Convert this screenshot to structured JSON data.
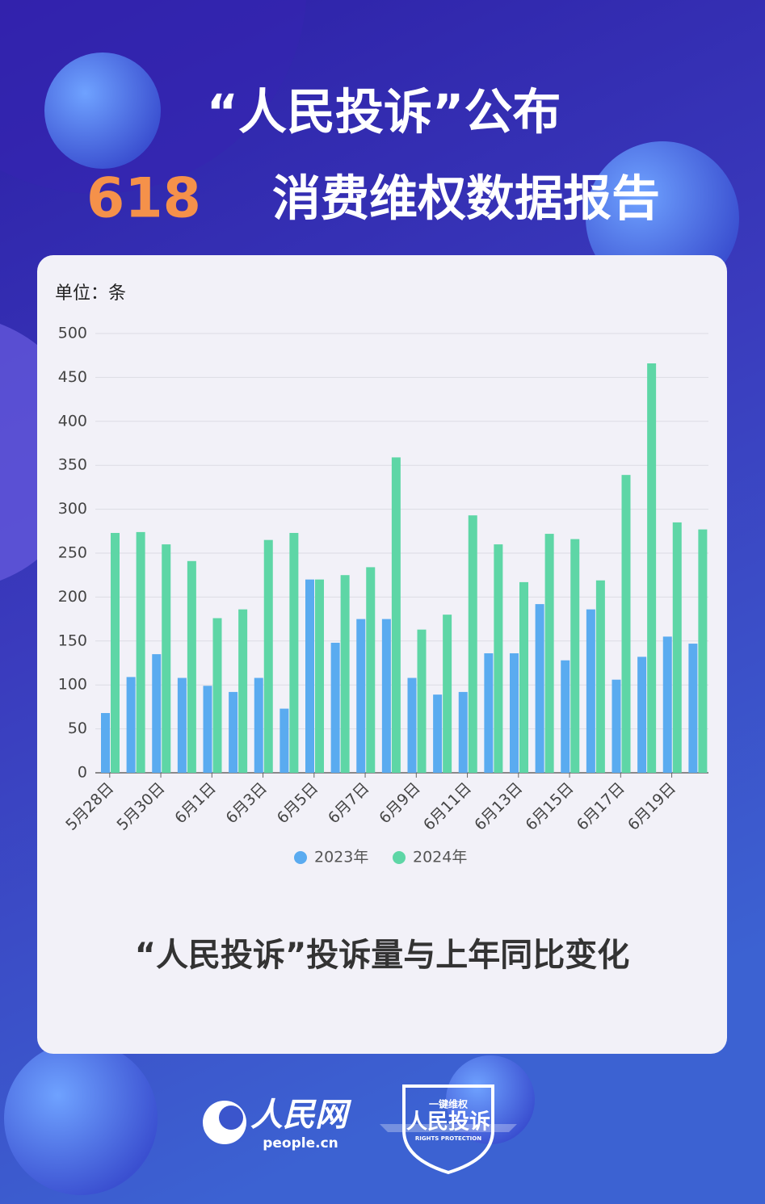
{
  "header": {
    "line1": "“人民投诉”公布",
    "number": "618",
    "line2": "消费维权数据报告"
  },
  "chart_data": {
    "type": "bar",
    "unit_label": "单位：条",
    "categories": [
      "5月28日",
      null,
      "5月30日",
      null,
      "6月1日",
      null,
      "6月3日",
      null,
      "6月5日",
      null,
      "6月7日",
      null,
      "6月9日",
      null,
      "6月11日",
      null,
      "6月13日",
      null,
      "6月15日",
      null,
      "6月17日",
      null,
      "6月19日",
      null
    ],
    "series": [
      {
        "name": "2023年",
        "color": "#5aabf0",
        "values": [
          68,
          109,
          135,
          108,
          99,
          92,
          108,
          73,
          220,
          148,
          175,
          175,
          108,
          89,
          92,
          136,
          136,
          192,
          128,
          186,
          106,
          132,
          155,
          147
        ]
      },
      {
        "name": "2024年",
        "color": "#5ed6a6",
        "values": [
          273,
          274,
          260,
          241,
          176,
          186,
          265,
          273,
          220,
          225,
          234,
          359,
          163,
          180,
          293,
          260,
          217,
          272,
          266,
          219,
          339,
          466,
          285,
          277
        ]
      }
    ],
    "ylim": [
      0,
      500
    ],
    "yticks": [
      0,
      50,
      100,
      150,
      200,
      250,
      300,
      350,
      400,
      450,
      500
    ],
    "grid": true,
    "legend": "bottom"
  },
  "caption": "“人民投诉”投诉量与上年同比变化",
  "footer": {
    "logo_name": "人民网",
    "logo_url": "people.cn",
    "badge_top": "一键维权",
    "badge_name": "人民投诉",
    "badge_sub": "RIGHTS PROTECTION"
  }
}
